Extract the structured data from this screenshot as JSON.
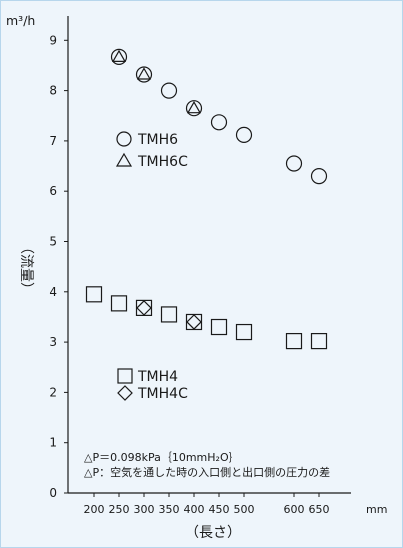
{
  "chart_data": {
    "type": "scatter",
    "title": "",
    "xlabel": "（長さ）",
    "x_unit": "mm",
    "ylabel": "（流量）",
    "y_unit": "m³/h",
    "xlim": [
      150,
      690
    ],
    "ylim": [
      0,
      9.4
    ],
    "x_ticks": [
      200,
      250,
      300,
      350,
      400,
      450,
      500,
      600,
      650
    ],
    "y_ticks": [
      0,
      1,
      2,
      3,
      4,
      5,
      6,
      7,
      8,
      9
    ],
    "grid": false,
    "legend_position": "inside plot, beside each point group",
    "series": [
      {
        "name": "TMH6",
        "marker": "circle",
        "points": [
          {
            "x": 250,
            "y": 8.67
          },
          {
            "x": 300,
            "y": 8.32
          },
          {
            "x": 350,
            "y": 8.0
          },
          {
            "x": 400,
            "y": 7.65
          },
          {
            "x": 450,
            "y": 7.37
          },
          {
            "x": 500,
            "y": 7.12
          },
          {
            "x": 600,
            "y": 6.55
          },
          {
            "x": 650,
            "y": 6.3
          }
        ]
      },
      {
        "name": "TMH6C",
        "marker": "triangle",
        "points": [
          {
            "x": 250,
            "y": 8.67
          },
          {
            "x": 300,
            "y": 8.32
          },
          {
            "x": 400,
            "y": 7.65
          }
        ]
      },
      {
        "name": "TMH4",
        "marker": "square",
        "points": [
          {
            "x": 200,
            "y": 3.95
          },
          {
            "x": 250,
            "y": 3.77
          },
          {
            "x": 300,
            "y": 3.68
          },
          {
            "x": 350,
            "y": 3.55
          },
          {
            "x": 400,
            "y": 3.4
          },
          {
            "x": 450,
            "y": 3.3
          },
          {
            "x": 500,
            "y": 3.2
          },
          {
            "x": 600,
            "y": 3.02
          },
          {
            "x": 650,
            "y": 3.02
          }
        ]
      },
      {
        "name": "TMH4C",
        "marker": "diamond",
        "points": [
          {
            "x": 300,
            "y": 3.68
          },
          {
            "x": 400,
            "y": 3.4
          }
        ]
      }
    ],
    "annotations": [
      "△P＝0.098kPa｛10mmH₂O｝",
      "△P：空気を通した時の入口側と出口側の圧力の差"
    ]
  },
  "colors": {
    "background": "#eef5fb",
    "border": "#b7d6ec",
    "ink": "#1a1a1a"
  }
}
